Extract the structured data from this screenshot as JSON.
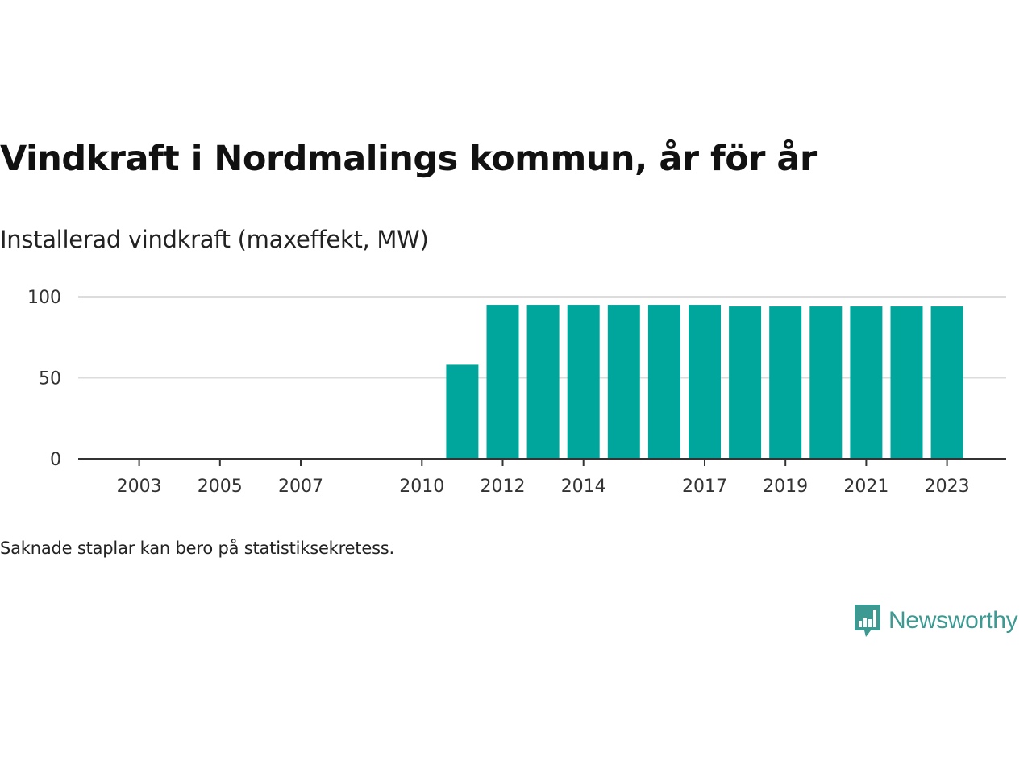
{
  "header": {
    "title": "Vindkraft i Nordmalings kommun, år för år",
    "subtitle": "Installerad vindkraft (maxeffekt, MW)"
  },
  "footer": {
    "note": "Saknade staplar kan bero på statistiksekretess.",
    "brand": "Newsworthy"
  },
  "colors": {
    "bar": "#00a59b",
    "grid": "#dcdcdc",
    "axis": "#333333",
    "brand": "#3c9a92"
  },
  "chart_data": {
    "type": "bar",
    "x": [
      2002,
      2003,
      2004,
      2005,
      2006,
      2007,
      2008,
      2009,
      2010,
      2011,
      2012,
      2013,
      2014,
      2015,
      2016,
      2017,
      2018,
      2019,
      2020,
      2021,
      2022,
      2023
    ],
    "values": [
      0,
      0,
      0,
      0,
      0,
      0,
      0,
      0,
      0,
      58,
      95,
      95,
      95,
      95,
      95,
      95,
      94,
      94,
      94,
      94,
      94,
      94
    ],
    "x_ticks": [
      2003,
      2005,
      2007,
      2010,
      2012,
      2014,
      2017,
      2019,
      2021,
      2023
    ],
    "y_ticks": [
      0,
      50,
      100
    ],
    "ylim": [
      0,
      100
    ],
    "grid": true,
    "xlabel": "",
    "ylabel": ""
  }
}
